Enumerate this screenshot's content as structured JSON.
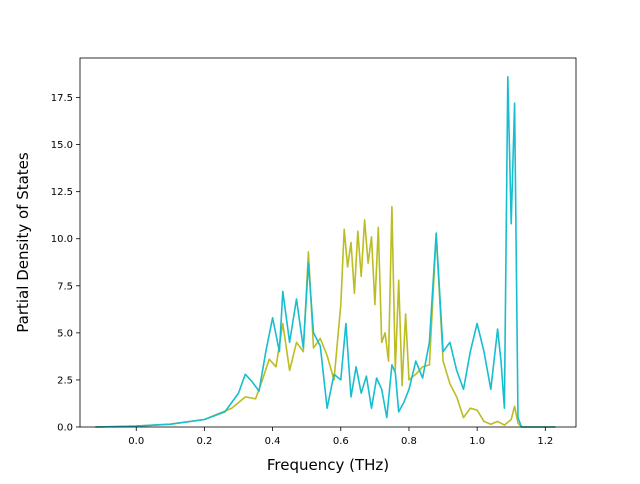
{
  "chart_data": {
    "type": "line",
    "title": "",
    "xlabel": "Frequency (THz)",
    "ylabel": "Partial Density of States",
    "xlim": [
      -0.165,
      1.29
    ],
    "ylim": [
      0,
      19.6
    ],
    "xticks": [
      "0.0",
      "0.2",
      "0.4",
      "0.6",
      "0.8",
      "1.0",
      "1.2"
    ],
    "xtick_values": [
      0.0,
      0.2,
      0.4,
      0.6,
      0.8,
      1.0,
      1.2
    ],
    "yticks": [
      "0.0",
      "2.5",
      "5.0",
      "7.5",
      "10.0",
      "12.5",
      "15.0",
      "17.5"
    ],
    "ytick_values": [
      0.0,
      2.5,
      5.0,
      7.5,
      10.0,
      12.5,
      15.0,
      17.5
    ],
    "grid": false,
    "legend": "none",
    "series": [
      {
        "color": "#bcbd22",
        "x": [
          -0.12,
          0.0,
          0.1,
          0.2,
          0.28,
          0.32,
          0.35,
          0.37,
          0.39,
          0.41,
          0.43,
          0.45,
          0.47,
          0.49,
          0.505,
          0.52,
          0.54,
          0.56,
          0.58,
          0.6,
          0.61,
          0.62,
          0.63,
          0.64,
          0.65,
          0.66,
          0.67,
          0.68,
          0.69,
          0.7,
          0.71,
          0.72,
          0.73,
          0.74,
          0.75,
          0.76,
          0.77,
          0.78,
          0.79,
          0.8,
          0.82,
          0.84,
          0.86,
          0.88,
          0.9,
          0.92,
          0.94,
          0.96,
          0.98,
          1.0,
          1.02,
          1.04,
          1.06,
          1.08,
          1.1,
          1.11,
          1.12,
          1.13,
          1.23
        ],
        "y": [
          0.0,
          0.05,
          0.15,
          0.4,
          1.0,
          1.6,
          1.5,
          2.5,
          3.6,
          3.2,
          5.5,
          3.0,
          4.5,
          4.0,
          9.3,
          4.2,
          4.7,
          3.8,
          2.5,
          6.5,
          10.5,
          8.5,
          9.8,
          7.1,
          10.4,
          8.0,
          11.0,
          8.7,
          10.1,
          6.5,
          10.6,
          4.5,
          5.0,
          3.5,
          11.7,
          3.0,
          7.8,
          2.2,
          6.0,
          2.5,
          2.8,
          3.2,
          3.3,
          10.2,
          3.5,
          2.3,
          1.6,
          0.5,
          1.0,
          0.9,
          0.3,
          0.15,
          0.3,
          0.1,
          0.4,
          1.1,
          0.2,
          0.0,
          0.0
        ]
      },
      {
        "color": "#17becf",
        "x": [
          -0.12,
          0.0,
          0.1,
          0.2,
          0.26,
          0.3,
          0.32,
          0.34,
          0.36,
          0.38,
          0.4,
          0.42,
          0.43,
          0.45,
          0.47,
          0.49,
          0.505,
          0.52,
          0.54,
          0.56,
          0.58,
          0.6,
          0.615,
          0.63,
          0.645,
          0.66,
          0.675,
          0.69,
          0.705,
          0.72,
          0.735,
          0.75,
          0.76,
          0.77,
          0.785,
          0.8,
          0.82,
          0.84,
          0.86,
          0.88,
          0.9,
          0.92,
          0.94,
          0.96,
          0.98,
          1.0,
          1.02,
          1.04,
          1.06,
          1.07,
          1.08,
          1.09,
          1.1,
          1.11,
          1.12,
          1.13,
          1.23
        ],
        "y": [
          0.0,
          0.05,
          0.15,
          0.4,
          0.8,
          1.8,
          2.8,
          2.4,
          1.9,
          4.0,
          5.8,
          4.0,
          7.2,
          4.5,
          6.8,
          4.2,
          8.7,
          5.0,
          4.3,
          1.0,
          2.8,
          2.5,
          5.5,
          1.6,
          3.2,
          1.8,
          2.7,
          1.0,
          2.6,
          2.0,
          0.5,
          3.3,
          2.9,
          0.8,
          1.3,
          2.0,
          3.5,
          2.6,
          4.5,
          10.3,
          4.0,
          4.5,
          3.0,
          2.0,
          4.0,
          5.5,
          4.0,
          2.0,
          5.2,
          3.5,
          1.0,
          18.6,
          10.8,
          17.2,
          0.5,
          0.0,
          0.0
        ]
      }
    ]
  }
}
